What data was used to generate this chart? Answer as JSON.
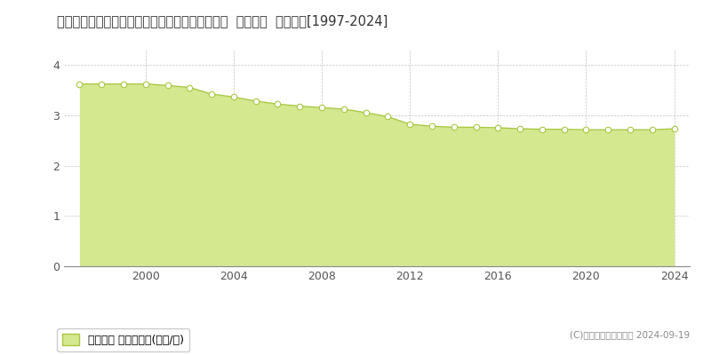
{
  "title": "福島県西白河郡西郷村大字熊倉字火打山５６番外  基準地価  地価推移[1997-2024]",
  "years": [
    1997,
    1998,
    1999,
    2000,
    2001,
    2002,
    2003,
    2004,
    2005,
    2006,
    2007,
    2008,
    2009,
    2010,
    2011,
    2012,
    2013,
    2014,
    2015,
    2016,
    2017,
    2018,
    2019,
    2020,
    2021,
    2022,
    2023,
    2024
  ],
  "values": [
    3.62,
    3.62,
    3.62,
    3.62,
    3.59,
    3.55,
    3.42,
    3.36,
    3.28,
    3.22,
    3.18,
    3.15,
    3.12,
    3.05,
    2.97,
    2.82,
    2.78,
    2.76,
    2.76,
    2.75,
    2.73,
    2.72,
    2.72,
    2.71,
    2.71,
    2.71,
    2.71,
    2.73
  ],
  "line_color": "#a8c840",
  "fill_color": "#d4e890",
  "marker_facecolor": "#ffffff",
  "marker_edgecolor": "#a8c840",
  "background_color": "#ffffff",
  "plot_bg_color": "#ffffff",
  "grid_color": "#aaaaaa",
  "yticks": [
    0,
    1,
    2,
    3,
    4
  ],
  "ylim": [
    0,
    4.3
  ],
  "xlim": [
    1996.3,
    2024.7
  ],
  "xticks": [
    2000,
    2004,
    2008,
    2012,
    2016,
    2020,
    2024
  ],
  "legend_label": "基準地価 平均坪単価(万円/坪)",
  "copyright_text": "(C)土地価格ドットコム 2024-09-19",
  "title_fontsize": 10.5,
  "axis_fontsize": 9,
  "legend_fontsize": 9
}
